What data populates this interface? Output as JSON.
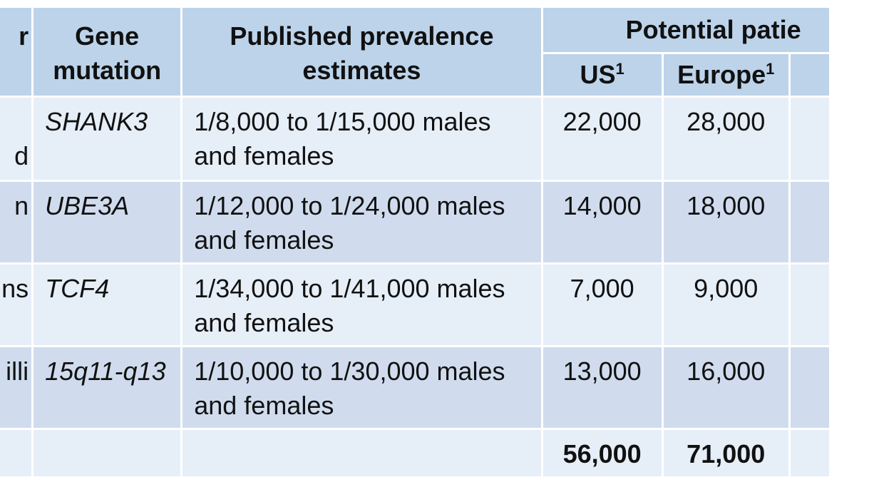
{
  "header": {
    "condition_label": "r",
    "gene_label": "Gene mutation",
    "prevalence_label": "Published prevalence estimates",
    "potential_label": "Potential patie",
    "us_label": "US",
    "europe_label": "Europe",
    "footnote_marker": "1"
  },
  "rows": [
    {
      "condition": "d",
      "gene": "SHANK3",
      "prevalence": "1/8,000 to 1/15,000 males and females",
      "us": "22,000",
      "europe": "28,000"
    },
    {
      "condition": "n",
      "gene": "UBE3A",
      "prevalence": "1/12,000 to 1/24,000 males and females",
      "us": "14,000",
      "europe": "18,000"
    },
    {
      "condition": "ins",
      "gene": "TCF4",
      "prevalence": "1/34,000 to 1/41,000 males and females",
      "us": "7,000",
      "europe": "9,000"
    },
    {
      "condition": "illi",
      "gene": "15q11-q13",
      "prevalence": "1/10,000 to 1/30,000 males and females",
      "us": "13,000",
      "europe": "16,000"
    }
  ],
  "totals": {
    "us": "56,000",
    "europe": "71,000"
  }
}
